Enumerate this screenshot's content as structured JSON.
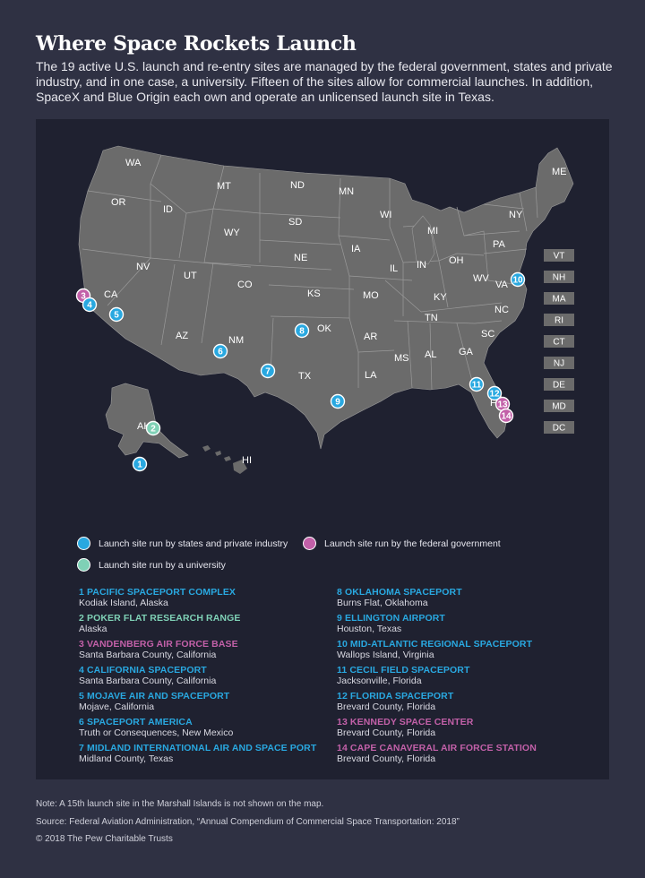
{
  "title": "Where Space Rockets Launch",
  "subtitle": "The 19 active U.S. launch and re-entry sites are managed by the federal government, states and private industry, and in one case, a university. Fifteen of the sites allow for commercial launches. In addition, SpaceX and Blue Origin each own and operate an unlicensed launch site in Texas.",
  "colors": {
    "state_private": "#29a8e0",
    "federal": "#c260a8",
    "university": "#7fd1b6",
    "map_fill": "#6b6b6b",
    "panel": "#1f2130",
    "background": "#2f3143"
  },
  "state_labels": [
    "WA",
    "OR",
    "MT",
    "ND",
    "MN",
    "ID",
    "SD",
    "WY",
    "WI",
    "MI",
    "NY",
    "ME",
    "NV",
    "UT",
    "CO",
    "NE",
    "IA",
    "IL",
    "IN",
    "OH",
    "PA",
    "CA",
    "KS",
    "MO",
    "KY",
    "WV",
    "VA",
    "AZ",
    "NM",
    "OK",
    "TN",
    "NC",
    "AR",
    "SC",
    "MS",
    "AL",
    "GA",
    "TX",
    "LA",
    "FL",
    "AK",
    "HI"
  ],
  "northeast_boxes": [
    "VT",
    "NH",
    "MA",
    "RI",
    "CT",
    "NJ",
    "DE",
    "MD",
    "DC"
  ],
  "legend": {
    "state_private": "Launch site run by states and private industry",
    "federal": "Launch site run by the federal government",
    "university": "Launch site run by a university"
  },
  "sites": [
    {
      "num": "1",
      "name": "PACIFIC SPACEPORT COMPLEX",
      "location": "Kodiak Island, Alaska",
      "type": "state_private"
    },
    {
      "num": "2",
      "name": "POKER FLAT RESEARCH RANGE",
      "location": "Alaska",
      "type": "university"
    },
    {
      "num": "3",
      "name": "VANDENBERG AIR FORCE BASE",
      "location": "Santa Barbara County, California",
      "type": "federal"
    },
    {
      "num": "4",
      "name": "CALIFORNIA SPACEPORT",
      "location": "Santa Barbara County, California",
      "type": "state_private"
    },
    {
      "num": "5",
      "name": "MOJAVE AIR AND SPACEPORT",
      "location": "Mojave, California",
      "type": "state_private"
    },
    {
      "num": "6",
      "name": "SPACEPORT AMERICA",
      "location": "Truth or Consequences, New Mexico",
      "type": "state_private"
    },
    {
      "num": "7",
      "name": "MIDLAND INTERNATIONAL AIR AND SPACE PORT",
      "location": "Midland County, Texas",
      "type": "state_private"
    },
    {
      "num": "8",
      "name": "OKLAHOMA SPACEPORT",
      "location": "Burns Flat, Oklahoma",
      "type": "state_private"
    },
    {
      "num": "9",
      "name": "ELLINGTON AIRPORT",
      "location": "Houston, Texas",
      "type": "state_private"
    },
    {
      "num": "10",
      "name": "MID-ATLANTIC REGIONAL SPACEPORT",
      "location": "Wallops Island, Virginia",
      "type": "state_private"
    },
    {
      "num": "11",
      "name": "CECIL FIELD SPACEPORT",
      "location": "Jacksonville, Florida",
      "type": "state_private"
    },
    {
      "num": "12",
      "name": "FLORIDA SPACEPORT",
      "location": "Brevard County, Florida",
      "type": "state_private"
    },
    {
      "num": "13",
      "name": "KENNEDY SPACE CENTER",
      "location": "Brevard County, Florida",
      "type": "federal"
    },
    {
      "num": "14",
      "name": "CAPE CANAVERAL AIR FORCE STATION",
      "location": "Brevard County, Florida",
      "type": "federal"
    }
  ],
  "note": "Note: A 15th launch site in the Marshall Islands is not shown on the map.",
  "source": "Source: Federal Aviation Administration, “Annual Compendium of Commercial Space Transportation: 2018”",
  "copyright": "© 2018 The Pew Charitable Trusts"
}
